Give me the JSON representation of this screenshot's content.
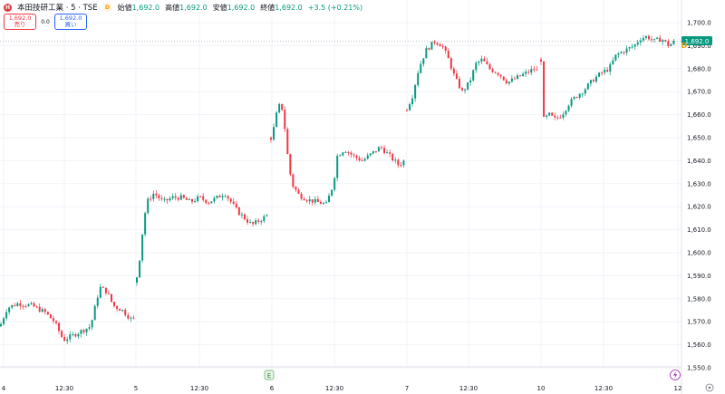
{
  "legend": {
    "symbol_badge": "H",
    "title": "本田技研工業 · 5 · TSE",
    "d_badge": "D",
    "open_label": "始値",
    "open_value": "1,692.0",
    "high_label": "高値",
    "high_value": "1,692.0",
    "low_label": "安値",
    "low_value": "1,692.0",
    "close_label": "終値",
    "close_value": "1,692.0",
    "change": "+3.5 (+0.21%)"
  },
  "trade": {
    "sell_price": "1,692.0",
    "sell_label": "売り",
    "spread": "0.0",
    "buy_price": "1,692.0",
    "buy_label": "買い"
  },
  "colors": {
    "up": "#089981",
    "down": "#f23645",
    "last_price_bg": "#089981",
    "grid": "#f0f3fa"
  },
  "price_axis": {
    "last_price_label": "1,692.0",
    "d_marker": "D",
    "settings_icon": "chart-settings-icon"
  },
  "time_axis": {
    "earnings_badge": "E",
    "dividend_badge": "lightning-icon"
  },
  "chart_data": {
    "type": "candlestick",
    "interval": "5m",
    "y_ticks": [
      "1,550.0",
      "1,560.0",
      "1,570.0",
      "1,580.0",
      "1,590.0",
      "1,600.0",
      "1,610.0",
      "1,620.0",
      "1,630.0",
      "1,640.0",
      "1,650.0",
      "1,660.0",
      "1,670.0",
      "1,680.0",
      "1,690.0",
      "1,700.0"
    ],
    "ylim": [
      1547,
      1702
    ],
    "x_ticks": [
      "4",
      "12:30",
      "5",
      "12:30",
      "6",
      "12:30",
      "7",
      "12:30",
      "10",
      "12:30",
      "12"
    ],
    "last_price": 1692.0,
    "series": [
      {
        "name": "4",
        "x_from": 0,
        "x_to": 148,
        "anchors": [
          [
            0,
            1568
          ],
          [
            8,
            1576
          ],
          [
            20,
            1578
          ],
          [
            35,
            1577
          ],
          [
            50,
            1574
          ],
          [
            60,
            1570
          ],
          [
            70,
            1562
          ],
          [
            80,
            1564
          ],
          [
            90,
            1566
          ],
          [
            100,
            1568
          ],
          [
            110,
            1585
          ],
          [
            118,
            1583
          ],
          [
            125,
            1577
          ],
          [
            135,
            1575
          ],
          [
            145,
            1571
          ]
        ]
      },
      {
        "name": "5",
        "x_from": 150,
        "x_to": 296,
        "anchors": [
          [
            150,
            1587
          ],
          [
            155,
            1600
          ],
          [
            158,
            1612
          ],
          [
            162,
            1622
          ],
          [
            170,
            1626
          ],
          [
            180,
            1622
          ],
          [
            190,
            1624
          ],
          [
            200,
            1624
          ],
          [
            210,
            1622
          ],
          [
            220,
            1624
          ],
          [
            230,
            1622
          ],
          [
            240,
            1624
          ],
          [
            248,
            1626
          ],
          [
            255,
            1622
          ],
          [
            262,
            1618
          ],
          [
            270,
            1615
          ],
          [
            278,
            1612
          ],
          [
            286,
            1614
          ],
          [
            294,
            1616
          ]
        ]
      },
      {
        "name": "6",
        "x_from": 298,
        "x_to": 447,
        "anchors": [
          [
            300,
            1650
          ],
          [
            305,
            1660
          ],
          [
            310,
            1666
          ],
          [
            314,
            1655
          ],
          [
            318,
            1640
          ],
          [
            322,
            1630
          ],
          [
            330,
            1625
          ],
          [
            340,
            1623
          ],
          [
            350,
            1622
          ],
          [
            360,
            1621
          ],
          [
            368,
            1630
          ],
          [
            372,
            1642
          ],
          [
            380,
            1645
          ],
          [
            390,
            1642
          ],
          [
            400,
            1640
          ],
          [
            410,
            1643
          ],
          [
            420,
            1646
          ],
          [
            430,
            1642
          ],
          [
            440,
            1638
          ],
          [
            446,
            1640
          ]
        ]
      },
      {
        "name": "7",
        "x_from": 448,
        "x_to": 595,
        "anchors": [
          [
            448,
            1662
          ],
          [
            455,
            1668
          ],
          [
            462,
            1680
          ],
          [
            470,
            1688
          ],
          [
            480,
            1692
          ],
          [
            488,
            1690
          ],
          [
            495,
            1684
          ],
          [
            502,
            1676
          ],
          [
            510,
            1670
          ],
          [
            518,
            1674
          ],
          [
            525,
            1682
          ],
          [
            532,
            1684
          ],
          [
            540,
            1680
          ],
          [
            550,
            1678
          ],
          [
            560,
            1674
          ],
          [
            570,
            1676
          ],
          [
            580,
            1678
          ],
          [
            590,
            1680
          ],
          [
            594,
            1678
          ]
        ]
      },
      {
        "name": "10",
        "x_from": 596,
        "x_to": 746,
        "anchors": [
          [
            597,
            1684
          ],
          [
            600,
            1658
          ],
          [
            606,
            1660
          ],
          [
            612,
            1658
          ],
          [
            620,
            1660
          ],
          [
            628,
            1665
          ],
          [
            636,
            1668
          ],
          [
            645,
            1671
          ],
          [
            654,
            1675
          ],
          [
            663,
            1678
          ],
          [
            672,
            1680
          ],
          [
            680,
            1686
          ],
          [
            690,
            1688
          ],
          [
            700,
            1690
          ],
          [
            706,
            1693
          ],
          [
            714,
            1694
          ],
          [
            722,
            1692
          ],
          [
            730,
            1693
          ],
          [
            738,
            1690
          ],
          [
            745,
            1692
          ]
        ]
      }
    ]
  }
}
